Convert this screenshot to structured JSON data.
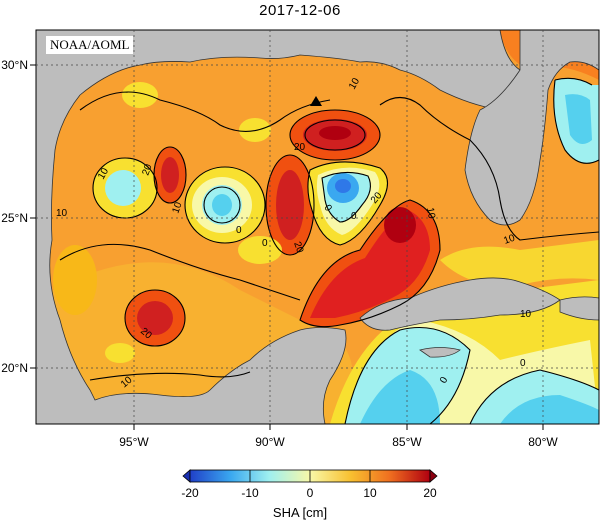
{
  "title": "2017-12-06",
  "agency": "NOAA/AOML",
  "lon_ticks": [
    "95°W",
    "90°W",
    "85°W",
    "80°W"
  ],
  "lat_ticks": [
    "30°N",
    "25°N",
    "20°N"
  ],
  "colorbar": {
    "label": "SHA [cm]",
    "ticks": [
      "-20",
      "-10",
      "0",
      "10",
      "20"
    ],
    "colors": [
      "#2040c8",
      "#2f78e8",
      "#3aa8f0",
      "#55d0ee",
      "#9ff0f0",
      "#f8f8a8",
      "#f8e030",
      "#f8b818",
      "#f88020",
      "#f05010",
      "#e02020",
      "#b00010"
    ]
  },
  "contour_labels": [
    "10",
    "10",
    "10",
    "10",
    "10",
    "10",
    "10",
    "10",
    "20",
    "20",
    "20",
    "20",
    "20",
    "0",
    "0",
    "0",
    "0",
    "0",
    "0"
  ],
  "marker": "triangle-marker",
  "colors": {
    "land": "#bdbdbd",
    "ocean_base": "#f8a030"
  }
}
